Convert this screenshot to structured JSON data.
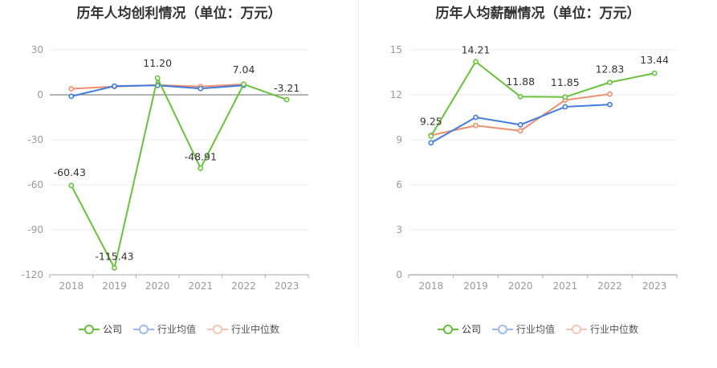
{
  "chart_data": [
    {
      "type": "line",
      "title": "历年人均创利情况（单位：万元）",
      "categories": [
        "2018",
        "2019",
        "2020",
        "2021",
        "2022",
        "2023"
      ],
      "ylim": [
        -120,
        30
      ],
      "yticks": [
        30,
        0,
        -30,
        -60,
        -90,
        -120
      ],
      "grid": true,
      "legend_position": "bottom",
      "series": [
        {
          "name": "公司",
          "color": "#67c23a",
          "values": [
            -60.43,
            -115.43,
            11.2,
            -48.91,
            7.04,
            -3.21
          ],
          "labels": [
            "-60.43",
            "-115.43",
            "11.20",
            "-48.91",
            "7.04",
            "-3.21"
          ]
        },
        {
          "name": "行业均值",
          "color": "#3f7be0",
          "values": [
            -1.0,
            5.8,
            6.3,
            4.2,
            6.3,
            null
          ]
        },
        {
          "name": "行业中位数",
          "color": "#f08d6a",
          "values": [
            4.0,
            5.5,
            6.5,
            5.5,
            7.0,
            null
          ]
        }
      ]
    },
    {
      "type": "line",
      "title": "历年人均薪酬情况（单位：万元）",
      "categories": [
        "2018",
        "2019",
        "2020",
        "2021",
        "2022",
        "2023"
      ],
      "ylim": [
        0,
        15
      ],
      "yticks": [
        15,
        12,
        9,
        6,
        3,
        0
      ],
      "grid": true,
      "legend_position": "bottom",
      "series": [
        {
          "name": "公司",
          "color": "#67c23a",
          "values": [
            9.25,
            14.21,
            11.88,
            11.85,
            12.83,
            13.44
          ],
          "labels": [
            "9.25",
            "14.21",
            "11.88",
            "11.85",
            "12.83",
            "13.44"
          ]
        },
        {
          "name": "行业均值",
          "color": "#3f7be0",
          "values": [
            8.8,
            10.5,
            10.0,
            11.2,
            11.35,
            null
          ]
        },
        {
          "name": "行业中位数",
          "color": "#f08d6a",
          "values": [
            9.3,
            9.95,
            9.6,
            11.65,
            12.05,
            null
          ]
        }
      ]
    }
  ]
}
